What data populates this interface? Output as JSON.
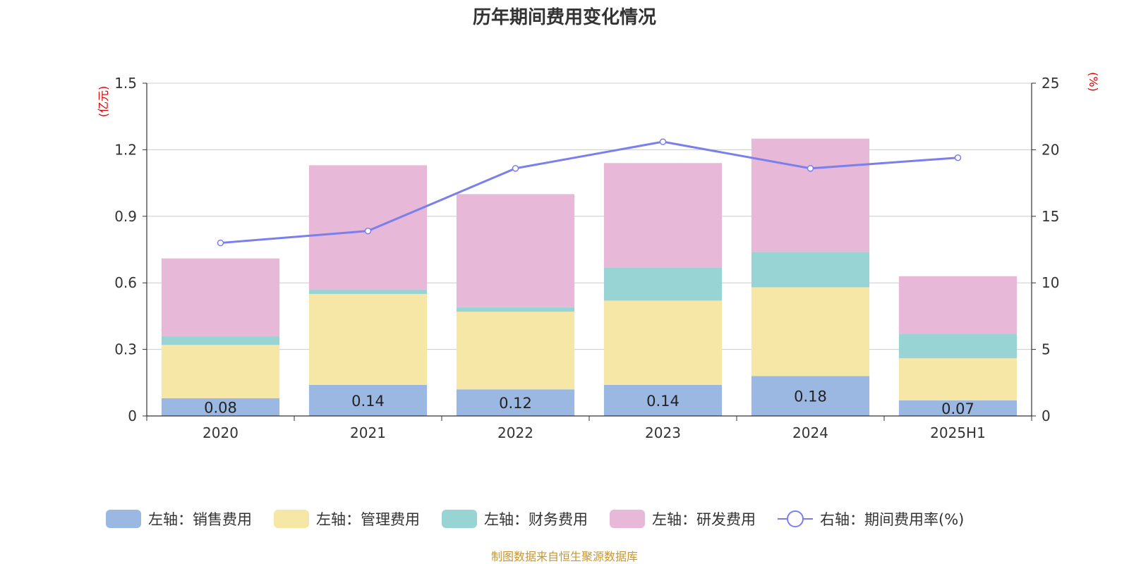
{
  "title": "历年期间费用变化情况",
  "source": "制图数据来自恒生聚源数据库",
  "colors": {
    "sales": "#9bb8e3",
    "admin": "#f7e7a6",
    "finance": "#98d4d4",
    "rnd": "#e7b8d8",
    "line": "#7b7fed",
    "unit": "#e00000"
  },
  "chart_data": {
    "type": "bar",
    "stacked": true,
    "categories": [
      "2020",
      "2021",
      "2022",
      "2023",
      "2024",
      "2025H1"
    ],
    "left_axis": {
      "unit": "(亿元)",
      "ylim": [
        0,
        1.5
      ],
      "ticks": [
        "0",
        "0.3",
        "0.6",
        "0.9",
        "1.2",
        "1.5"
      ]
    },
    "right_axis": {
      "unit": "(%)",
      "ylim": [
        0,
        25
      ],
      "ticks": [
        "0",
        "5",
        "10",
        "15",
        "20",
        "25"
      ]
    },
    "series": [
      {
        "name": "左轴：销售费用",
        "key": "sales",
        "axis": "left",
        "values": [
          0.08,
          0.14,
          0.12,
          0.14,
          0.18,
          0.07
        ],
        "labels": [
          "0.08",
          "0.14",
          "0.12",
          "0.14",
          "0.18",
          "0.07"
        ]
      },
      {
        "name": "左轴：管理费用",
        "key": "admin",
        "axis": "left",
        "values": [
          0.24,
          0.41,
          0.35,
          0.38,
          0.4,
          0.19
        ]
      },
      {
        "name": "左轴：财务费用",
        "key": "finance",
        "axis": "left",
        "values": [
          0.04,
          0.02,
          0.02,
          0.15,
          0.16,
          0.11
        ]
      },
      {
        "name": "左轴：研发费用",
        "key": "rnd",
        "axis": "left",
        "values": [
          0.35,
          0.56,
          0.51,
          0.47,
          0.51,
          0.26
        ]
      },
      {
        "name": "右轴：期间费用率(%)",
        "key": "line",
        "axis": "right",
        "type": "line",
        "values": [
          13.0,
          13.9,
          18.6,
          20.6,
          18.6,
          19.4
        ]
      }
    ],
    "grid": true,
    "legend_position": "bottom"
  }
}
